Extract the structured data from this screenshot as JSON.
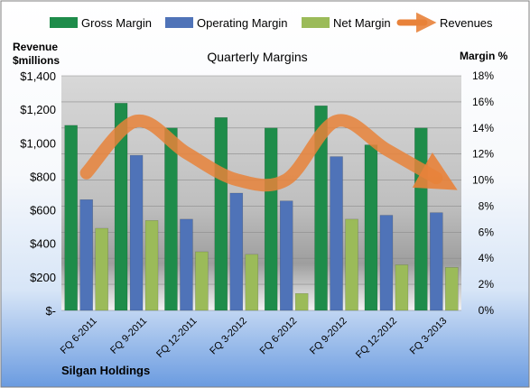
{
  "chart_data": {
    "type": "bar",
    "title": "Quarterly Margins",
    "company": "Silgan Holdings",
    "left_axis_label_line1": "Revenue",
    "left_axis_label_line2": "$millions",
    "right_axis_label": "Margin %",
    "categories": [
      "FQ 6-2011",
      "FQ 9-2011",
      "FQ 12-2011",
      "FQ 3-2012",
      "FQ 6-2012",
      "FQ 9-2012",
      "FQ 12-2012",
      "FQ 3-2013"
    ],
    "left_ticks": [
      "$-",
      "$200",
      "$400",
      "$600",
      "$800",
      "$1,000",
      "$1,200",
      "$1,400"
    ],
    "right_ticks": [
      "0%",
      "2%",
      "4%",
      "6%",
      "8%",
      "10%",
      "12%",
      "14%",
      "16%",
      "18%"
    ],
    "ylim_left": [
      0,
      1400
    ],
    "ylim_right": [
      0,
      18
    ],
    "grid": true,
    "legend_position": "top",
    "series": [
      {
        "name": "Gross Margin",
        "axis": "right",
        "color": "#1E8C4A",
        "values": [
          14.2,
          15.9,
          14.0,
          14.8,
          14.0,
          15.7,
          12.7,
          14.0
        ]
      },
      {
        "name": "Operating Margin",
        "axis": "right",
        "color": "#4F73B8",
        "values": [
          8.5,
          11.9,
          7.0,
          9.0,
          8.4,
          11.8,
          7.3,
          7.5
        ]
      },
      {
        "name": "Net Margin",
        "axis": "right",
        "color": "#9BBB59",
        "values": [
          6.3,
          6.9,
          4.5,
          4.3,
          1.3,
          7.0,
          3.5,
          3.3
        ]
      }
    ],
    "line_series": {
      "name": "Revenues",
      "axis": "left",
      "color": "#E8823A",
      "values": [
        820,
        1130,
        940,
        780,
        780,
        1130,
        960,
        790
      ]
    }
  }
}
